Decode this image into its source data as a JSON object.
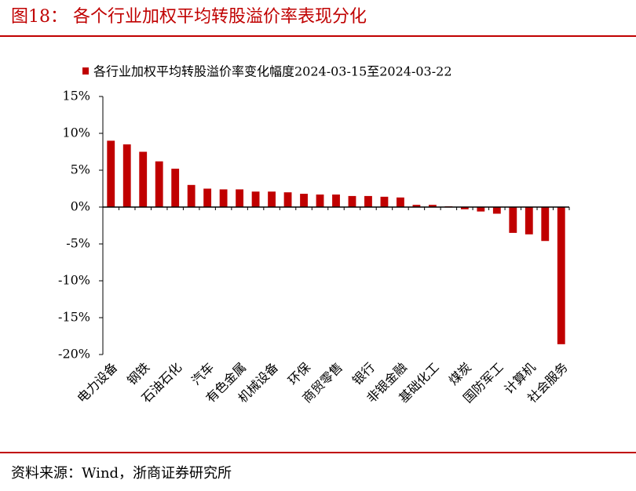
{
  "header": {
    "title": "图18：  各个行业加权平均转股溢价率表现分化"
  },
  "chart_data": {
    "type": "bar",
    "categories": [
      "电力设备",
      null,
      "钢铁",
      null,
      "石油石化",
      null,
      "汽车",
      null,
      "有色金属",
      null,
      "机械设备",
      null,
      "环保",
      null,
      "商贸零售",
      null,
      "银行",
      null,
      "非银金融",
      null,
      "基础化工",
      null,
      "煤炭",
      null,
      "国防军工",
      null,
      "计算机",
      null,
      "社会服务"
    ],
    "series": [
      {
        "name": "各行业加权平均转股溢价率变化幅度2024-03-15至2024-03-22",
        "color": "#c00000",
        "values": [
          9.0,
          8.5,
          7.5,
          6.2,
          5.2,
          3.0,
          2.5,
          2.4,
          2.4,
          2.1,
          2.1,
          2.0,
          1.8,
          1.7,
          1.7,
          1.5,
          1.5,
          1.4,
          1.3,
          0.3,
          0.3,
          0.1,
          -0.3,
          -0.6,
          -0.9,
          -3.5,
          -3.7,
          -4.6,
          -18.6
        ]
      }
    ],
    "ylim": [
      -20,
      15
    ],
    "yticks": [
      {
        "value": -20,
        "label": "-20%"
      },
      {
        "value": -15,
        "label": "-15%"
      },
      {
        "value": -10,
        "label": "-10%"
      },
      {
        "value": -5,
        "label": "-5%"
      },
      {
        "value": 0,
        "label": "0%"
      },
      {
        "value": 5,
        "label": "5%"
      },
      {
        "value": 10,
        "label": "10%"
      },
      {
        "value": 15,
        "label": "15%"
      }
    ],
    "legend": "top"
  },
  "footer": {
    "source": "资料来源：Wind，浙商证券研究所"
  }
}
